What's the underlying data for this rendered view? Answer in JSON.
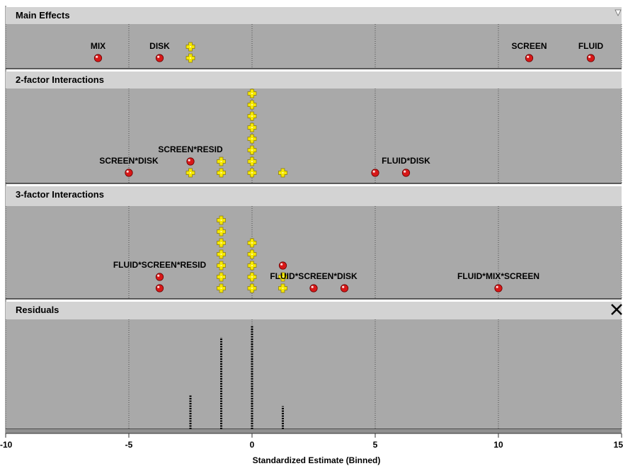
{
  "chart_data": {
    "type": "scatter",
    "xlabel": "Standardized Estimate (Binned)",
    "xlim": [
      -10,
      15
    ],
    "xticks": [
      -10,
      -5,
      0,
      5,
      10,
      15
    ],
    "grid": true,
    "markers": {
      "significant": {
        "symbol": "sphere",
        "color": "#e0201c"
      },
      "insignificant": {
        "symbol": "cross",
        "color": "#f4e600"
      }
    },
    "panels": [
      {
        "title": "Main Effects",
        "control": "triangle-down-icon",
        "points": [
          {
            "x": -6.25,
            "level": 0,
            "kind": "significant",
            "label": "MIX"
          },
          {
            "x": -3.75,
            "level": 0,
            "kind": "significant",
            "label": "DISK"
          },
          {
            "x": -2.5,
            "level": 0,
            "kind": "insignificant"
          },
          {
            "x": -2.5,
            "level": 1,
            "kind": "insignificant"
          },
          {
            "x": 11.25,
            "level": 0,
            "kind": "significant",
            "label": "SCREEN"
          },
          {
            "x": 13.75,
            "level": 0,
            "kind": "significant",
            "label": "FLUID"
          }
        ]
      },
      {
        "title": "2-factor Interactions",
        "points": [
          {
            "x": -5.0,
            "level": 0,
            "kind": "significant",
            "label": "SCREEN*DISK"
          },
          {
            "x": -2.5,
            "level": 0,
            "kind": "insignificant"
          },
          {
            "x": -2.5,
            "level": 1,
            "kind": "significant",
            "label": "SCREEN*RESID"
          },
          {
            "x": -1.25,
            "level": 0,
            "kind": "insignificant"
          },
          {
            "x": -1.25,
            "level": 1,
            "kind": "insignificant"
          },
          {
            "x": 0,
            "level": 0,
            "kind": "insignificant"
          },
          {
            "x": 0,
            "level": 1,
            "kind": "insignificant"
          },
          {
            "x": 0,
            "level": 2,
            "kind": "insignificant"
          },
          {
            "x": 0,
            "level": 3,
            "kind": "insignificant"
          },
          {
            "x": 0,
            "level": 4,
            "kind": "insignificant"
          },
          {
            "x": 0,
            "level": 5,
            "kind": "insignificant"
          },
          {
            "x": 0,
            "level": 6,
            "kind": "insignificant"
          },
          {
            "x": 0,
            "level": 7,
            "kind": "insignificant"
          },
          {
            "x": 1.25,
            "level": 0,
            "kind": "insignificant"
          },
          {
            "x": 5.0,
            "level": 0,
            "kind": "significant"
          },
          {
            "x": 6.25,
            "level": 0,
            "kind": "significant",
            "label": "FLUID*DISK"
          }
        ]
      },
      {
        "title": "3-factor Interactions",
        "points": [
          {
            "x": -3.75,
            "level": 0,
            "kind": "significant"
          },
          {
            "x": -3.75,
            "level": 1,
            "kind": "significant",
            "label": "FLUID*SCREEN*RESID"
          },
          {
            "x": -1.25,
            "level": 0,
            "kind": "insignificant"
          },
          {
            "x": -1.25,
            "level": 1,
            "kind": "insignificant"
          },
          {
            "x": -1.25,
            "level": 2,
            "kind": "insignificant"
          },
          {
            "x": -1.25,
            "level": 3,
            "kind": "insignificant"
          },
          {
            "x": -1.25,
            "level": 4,
            "kind": "insignificant"
          },
          {
            "x": -1.25,
            "level": 5,
            "kind": "insignificant"
          },
          {
            "x": -1.25,
            "level": 6,
            "kind": "insignificant"
          },
          {
            "x": 0,
            "level": 0,
            "kind": "insignificant"
          },
          {
            "x": 0,
            "level": 1,
            "kind": "insignificant"
          },
          {
            "x": 0,
            "level": 2,
            "kind": "insignificant"
          },
          {
            "x": 0,
            "level": 3,
            "kind": "insignificant"
          },
          {
            "x": 0,
            "level": 4,
            "kind": "insignificant"
          },
          {
            "x": 1.25,
            "level": 0,
            "kind": "insignificant"
          },
          {
            "x": 1.25,
            "level": 1,
            "kind": "insignificant"
          },
          {
            "x": 1.25,
            "level": 2,
            "kind": "significant"
          },
          {
            "x": 2.5,
            "level": 0,
            "kind": "significant",
            "label": "FLUID*SCREEN*DISK"
          },
          {
            "x": 3.75,
            "level": 0,
            "kind": "significant"
          },
          {
            "x": 10.0,
            "level": 0,
            "kind": "significant",
            "label": "FLUID*MIX*SCREEN"
          }
        ]
      },
      {
        "title": "Residuals",
        "control": "close-x-icon",
        "type": "bar",
        "bars": [
          {
            "x": -2.5,
            "count": 3
          },
          {
            "x": -1.25,
            "count": 8
          },
          {
            "x": 0,
            "count": 9
          },
          {
            "x": 1.25,
            "count": 2
          }
        ]
      }
    ]
  },
  "colors": {
    "panel_bg": "#a9a9a9",
    "header_bg": "#d3d3d3",
    "gridline": "#4d4d4d"
  }
}
